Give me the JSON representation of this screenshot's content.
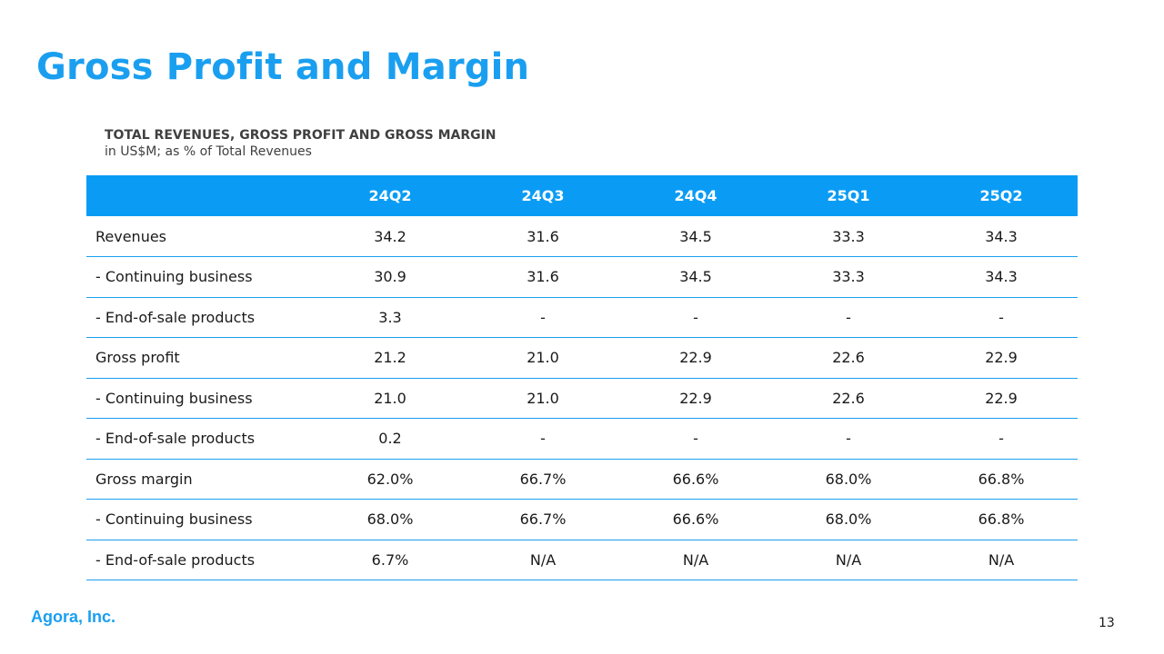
{
  "slide": {
    "title": "Gross Profit and Margin",
    "subtitle": "TOTAL REVENUES, GROSS PROFIT AND GROSS MARGIN",
    "subtitle_sub": "in US$M; as % of Total Revenues",
    "company": "Agora, Inc.",
    "page_number": "13"
  },
  "colors": {
    "accent": "#1a9ff0",
    "header_bg": "#0a9cf5",
    "text": "#1a1a1a",
    "muted": "#6b6b6b"
  },
  "chart_data": {
    "type": "table",
    "title": "TOTAL REVENUES, GROSS PROFIT AND GROSS MARGIN",
    "subtitle": "in US$M; as % of Total Revenues",
    "columns": [
      "",
      "24Q2",
      "24Q3",
      "24Q4",
      "25Q1",
      "25Q2"
    ],
    "rows": [
      {
        "label": "Revenues",
        "style": "main",
        "values": [
          "34.2",
          "31.6",
          "34.5",
          "33.3",
          "34.3"
        ]
      },
      {
        "label": "- Continuing business",
        "style": "cont",
        "values": [
          "30.9",
          "31.6",
          "34.5",
          "33.3",
          "34.3"
        ]
      },
      {
        "label": "- End-of-sale products",
        "style": "eos",
        "values": [
          "3.3",
          "-",
          "-",
          "-",
          "-"
        ]
      },
      {
        "label": "Gross profit",
        "style": "main",
        "values": [
          "21.2",
          "21.0",
          "22.9",
          "22.6",
          "22.9"
        ]
      },
      {
        "label": "- Continuing business",
        "style": "cont",
        "values": [
          "21.0",
          "21.0",
          "22.9",
          "22.6",
          "22.9"
        ]
      },
      {
        "label": "- End-of-sale products",
        "style": "eos",
        "values": [
          "0.2",
          "-",
          "-",
          "-",
          "-"
        ]
      },
      {
        "label": "Gross margin",
        "style": "main",
        "values": [
          "62.0%",
          "66.7%",
          "66.6%",
          "68.0%",
          "66.8%"
        ]
      },
      {
        "label": "- Continuing business",
        "style": "cont",
        "values": [
          "68.0%",
          "66.7%",
          "66.6%",
          "68.0%",
          "66.8%"
        ]
      },
      {
        "label": "- End-of-sale products",
        "style": "eos",
        "values": [
          "6.7%",
          "N/A",
          "N/A",
          "N/A",
          "N/A"
        ]
      }
    ]
  }
}
